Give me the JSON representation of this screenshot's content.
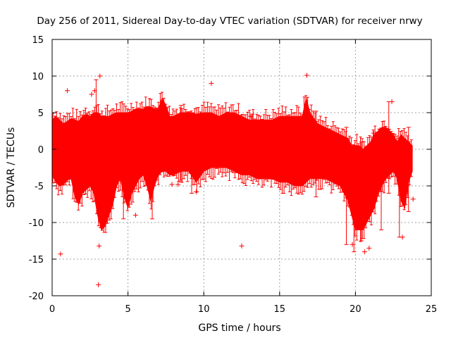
{
  "chart_data": {
    "type": "scatter",
    "title": "Day 256 of 2011, Sidereal Day-to-day VTEC variation (SDTVAR) for receiver nrwy",
    "xlabel": "GPS time / hours",
    "ylabel": "SDTVAR / TECUs",
    "xlim": [
      0,
      25
    ],
    "ylim": [
      -20,
      15
    ],
    "xticks": [
      0,
      5,
      10,
      15,
      20,
      25
    ],
    "yticks": [
      -20,
      -15,
      -10,
      -5,
      0,
      5,
      10,
      15
    ],
    "grid": true,
    "series_color": "#ff0000",
    "marker": "plus-with-errorbars",
    "band": [
      [
        0.0,
        -3.5,
        4.0
      ],
      [
        0.25,
        -4.5,
        4.5
      ],
      [
        0.5,
        -5.0,
        4.0
      ],
      [
        0.75,
        -4.8,
        3.5
      ],
      [
        1.0,
        -4.2,
        3.8
      ],
      [
        1.25,
        -4.0,
        4.2
      ],
      [
        1.5,
        -6.5,
        4.0
      ],
      [
        1.75,
        -7.5,
        3.8
      ],
      [
        2.0,
        -6.0,
        4.5
      ],
      [
        2.25,
        -5.5,
        4.8
      ],
      [
        2.5,
        -5.0,
        4.5
      ],
      [
        2.75,
        -6.0,
        5.0
      ],
      [
        3.0,
        -9.0,
        5.0
      ],
      [
        3.25,
        -11.0,
        4.5
      ],
      [
        3.5,
        -10.5,
        4.5
      ],
      [
        3.75,
        -9.0,
        4.5
      ],
      [
        4.0,
        -7.5,
        4.8
      ],
      [
        4.25,
        -5.0,
        5.0
      ],
      [
        4.5,
        -4.0,
        5.0
      ],
      [
        4.75,
        -6.5,
        5.0
      ],
      [
        5.0,
        -8.0,
        5.0
      ],
      [
        5.25,
        -6.0,
        5.2
      ],
      [
        5.5,
        -5.0,
        5.5
      ],
      [
        5.75,
        -4.0,
        5.5
      ],
      [
        6.0,
        -3.5,
        5.5
      ],
      [
        6.25,
        -5.0,
        5.8
      ],
      [
        6.5,
        -7.0,
        5.8
      ],
      [
        6.75,
        -5.0,
        5.5
      ],
      [
        7.0,
        -3.5,
        5.5
      ],
      [
        7.25,
        -3.0,
        7.0
      ],
      [
        7.5,
        -3.0,
        6.0
      ],
      [
        7.75,
        -3.5,
        4.5
      ],
      [
        8.0,
        -3.5,
        4.5
      ],
      [
        8.5,
        -3.0,
        5.0
      ],
      [
        9.0,
        -3.0,
        5.0
      ],
      [
        9.5,
        -4.5,
        4.8
      ],
      [
        10.0,
        -3.0,
        5.0
      ],
      [
        10.5,
        -2.5,
        5.0
      ],
      [
        11.0,
        -2.5,
        4.5
      ],
      [
        11.5,
        -2.5,
        5.0
      ],
      [
        12.0,
        -3.0,
        5.0
      ],
      [
        12.5,
        -3.5,
        4.5
      ],
      [
        13.0,
        -3.5,
        4.0
      ],
      [
        13.5,
        -4.0,
        4.0
      ],
      [
        14.0,
        -4.0,
        4.0
      ],
      [
        14.5,
        -4.0,
        4.0
      ],
      [
        15.0,
        -4.5,
        4.5
      ],
      [
        15.5,
        -4.5,
        4.5
      ],
      [
        16.0,
        -5.0,
        4.5
      ],
      [
        16.5,
        -5.0,
        4.5
      ],
      [
        16.75,
        -4.5,
        7.0
      ],
      [
        17.0,
        -4.0,
        5.0
      ],
      [
        17.5,
        -4.0,
        3.5
      ],
      [
        18.0,
        -4.0,
        3.0
      ],
      [
        18.5,
        -4.5,
        2.5
      ],
      [
        19.0,
        -5.0,
        2.0
      ],
      [
        19.5,
        -7.0,
        1.5
      ],
      [
        19.75,
        -9.0,
        0.5
      ],
      [
        20.0,
        -11.0,
        0.5
      ],
      [
        20.25,
        -11.0,
        0.5
      ],
      [
        20.5,
        -11.0,
        0.0
      ],
      [
        20.75,
        -10.0,
        0.5
      ],
      [
        21.0,
        -9.0,
        1.0
      ],
      [
        21.25,
        -8.0,
        2.0
      ],
      [
        21.5,
        -6.0,
        2.5
      ],
      [
        21.75,
        -5.0,
        3.0
      ],
      [
        22.0,
        -4.0,
        3.0
      ],
      [
        22.25,
        -3.5,
        2.5
      ],
      [
        22.5,
        -3.0,
        2.0
      ],
      [
        22.75,
        -4.0,
        1.0
      ],
      [
        23.0,
        -7.0,
        2.0
      ],
      [
        23.25,
        -8.0,
        1.5
      ],
      [
        23.5,
        -4.5,
        1.0
      ],
      [
        23.75,
        -3.0,
        0.5
      ]
    ],
    "outliers": [
      [
        0.55,
        -14.3
      ],
      [
        1.0,
        8.0
      ],
      [
        3.05,
        -18.5
      ],
      [
        3.1,
        -13.2
      ],
      [
        2.8,
        8.0
      ],
      [
        2.6,
        7.5
      ],
      [
        3.15,
        10.0
      ],
      [
        10.5,
        9.0
      ],
      [
        12.5,
        -13.2
      ],
      [
        13.1,
        4.5
      ],
      [
        9.5,
        -5.8
      ],
      [
        7.9,
        -4.8
      ],
      [
        8.3,
        -4.8
      ],
      [
        16.8,
        10.1
      ],
      [
        20.6,
        -14.0
      ],
      [
        21.2,
        2.2
      ],
      [
        20.9,
        -13.5
      ],
      [
        23.1,
        -12.0
      ],
      [
        23.8,
        -6.8
      ],
      [
        22.4,
        6.5
      ],
      [
        5.5,
        -9.0
      ],
      [
        19.8,
        -13.0
      ]
    ],
    "spikes": [
      [
        2.9,
        -7.0,
        9.5
      ],
      [
        4.7,
        -9.5,
        3.0
      ],
      [
        6.6,
        -9.5,
        5.0
      ],
      [
        8.5,
        -4.5,
        6.0
      ],
      [
        9.2,
        -6.0,
        5.0
      ],
      [
        13.2,
        -3.5,
        4.8
      ],
      [
        17.4,
        -6.5,
        5.2
      ],
      [
        19.4,
        -13.0,
        3.0
      ],
      [
        19.9,
        -14.0,
        0.5
      ],
      [
        20.4,
        -12.5,
        1.0
      ],
      [
        21.7,
        -11.0,
        2.0
      ],
      [
        22.2,
        -6.0,
        6.5
      ],
      [
        22.9,
        -12.0,
        1.5
      ],
      [
        23.5,
        -8.5,
        3.0
      ]
    ]
  }
}
